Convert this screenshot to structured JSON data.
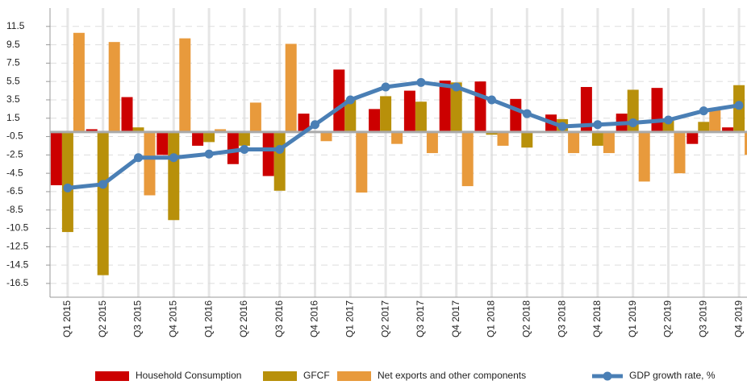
{
  "chart_data": {
    "type": "bar_line",
    "categories": [
      "Q1 2015",
      "Q2 2015",
      "Q3 2015",
      "Q4 2015",
      "Q1 2016",
      "Q2 2016",
      "Q3 2016",
      "Q4 2016",
      "Q1 2017",
      "Q2 2017",
      "Q3 2017",
      "Q4 2017",
      "Q1 2018",
      "Q2 2018",
      "Q3 2018",
      "Q4 2018",
      "Q1 2019",
      "Q2 2019",
      "Q3 2019",
      "Q4 2019"
    ],
    "series": [
      {
        "name": "Household Consumption",
        "type": "bar",
        "color": "#cc0000",
        "values": [
          -5.8,
          0.3,
          3.8,
          -2.5,
          -1.5,
          -3.5,
          -4.8,
          2.0,
          6.8,
          2.5,
          4.5,
          5.6,
          5.5,
          3.6,
          1.9,
          4.9,
          2.0,
          4.8,
          -1.3,
          0.5
        ]
      },
      {
        "name": "GFCF",
        "type": "bar",
        "color": "#b8900a",
        "values": [
          -10.9,
          -15.6,
          0.5,
          -9.6,
          -1.1,
          -1.5,
          -6.4,
          0,
          3.5,
          3.9,
          3.3,
          5.4,
          -0.3,
          -1.7,
          1.4,
          -1.5,
          4.6,
          1.3,
          1.1,
          5.1
        ]
      },
      {
        "name": "Net exports and other components",
        "type": "bar",
        "color": "#e89a3c",
        "values": [
          10.8,
          9.8,
          -6.9,
          10.2,
          0.3,
          3.2,
          9.6,
          -1.0,
          -6.6,
          -1.3,
          -2.3,
          -5.9,
          -1.5,
          0.1,
          -2.3,
          -2.3,
          -5.4,
          -4.5,
          2.4,
          -2.5
        ]
      },
      {
        "name": "GDP growth rate, %",
        "type": "line",
        "color": "#4a7fb5",
        "values": [
          -6.1,
          -5.7,
          -2.8,
          -2.8,
          -2.4,
          -1.9,
          -1.9,
          0.8,
          3.5,
          4.9,
          5.4,
          4.9,
          3.5,
          2.0,
          0.6,
          0.8,
          1.0,
          1.3,
          2.3,
          2.9
        ]
      }
    ],
    "ylim": [
      -18,
      13.5
    ],
    "yticks": [
      11.5,
      9.5,
      7.5,
      5.5,
      3.5,
      1.5,
      -0.5,
      -2.5,
      -4.5,
      -6.5,
      -8.5,
      -10.5,
      -12.5,
      -14.5,
      -16.5
    ],
    "grid": true
  }
}
